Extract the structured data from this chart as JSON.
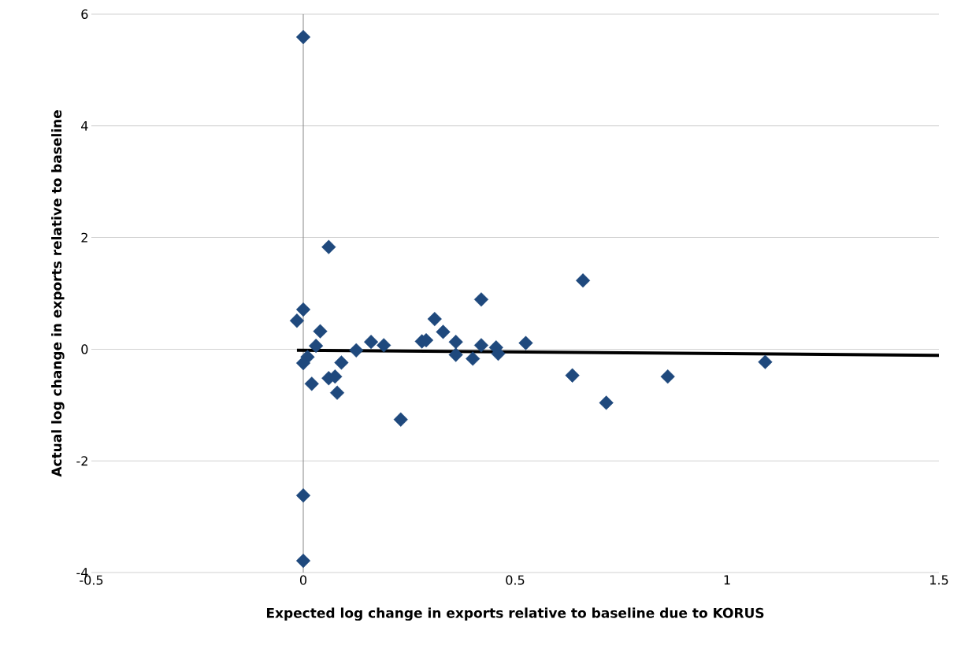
{
  "chart_data": {
    "type": "scatter",
    "xlabel": "Expected log change in exports relative to baseline due to KORUS",
    "ylabel": "Actual log change in exports relative to baseline",
    "xlim": [
      -0.5,
      1.5
    ],
    "xticks": [
      -0.5,
      0,
      0.5,
      1,
      1.5
    ],
    "ylim": [
      -4,
      6
    ],
    "yticks": [
      -4,
      -2,
      0,
      2,
      4,
      6
    ],
    "grid": "y",
    "marker": "diamond",
    "ref_lines": [
      {
        "axis": "x",
        "value": 0,
        "color": "#878787"
      }
    ],
    "series": [
      {
        "type": "scatter",
        "color": "#1f497d",
        "x": [
          0.0,
          0.06,
          -0.015,
          0.0,
          0.04,
          0.03,
          0.01,
          0.0,
          0.02,
          0.06,
          0.075,
          0.08,
          0.09,
          0.125,
          0.16,
          0.19,
          0.23,
          0.28,
          0.29,
          0.31,
          0.33,
          0.36,
          0.36,
          0.4,
          0.42,
          0.42,
          0.455,
          0.46,
          0.525,
          0.635,
          0.66,
          0.715,
          0.86,
          1.09,
          0.0,
          0.0
        ],
        "values": [
          5.59,
          1.83,
          0.51,
          0.71,
          0.32,
          0.06,
          -0.14,
          -0.25,
          -0.62,
          -0.52,
          -0.49,
          -0.78,
          -0.24,
          -0.02,
          0.13,
          0.07,
          -1.26,
          0.14,
          0.16,
          0.54,
          0.31,
          0.13,
          -0.1,
          -0.17,
          0.89,
          0.07,
          0.03,
          -0.08,
          0.11,
          -0.47,
          1.23,
          -0.96,
          -0.49,
          -0.23,
          -2.62,
          -3.79
        ]
      },
      {
        "type": "line",
        "color": "#000000",
        "marker": "none",
        "x": [
          -0.015,
          1.5
        ],
        "values": [
          -0.02,
          -0.11
        ]
      }
    ]
  }
}
